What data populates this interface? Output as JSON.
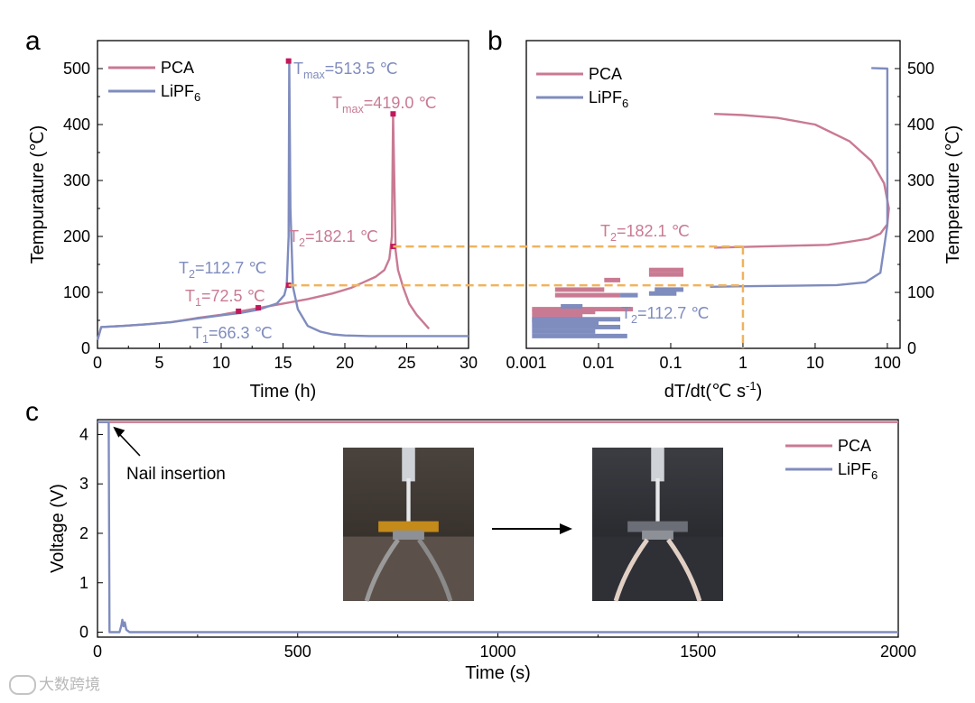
{
  "watermark": {
    "text": "大数跨境"
  },
  "colors": {
    "pca": "#c97a93",
    "lipf6": "#7f8cbe",
    "dashed": "#f0b35e",
    "pca_text": "#c97a93",
    "lipf6_text": "#7f8cbe",
    "marker": "#c2185b"
  },
  "chart_data": [
    {
      "id": "a",
      "type": "line",
      "panel_letter": "a",
      "xlabel": "Time (h)",
      "ylabel": "Tempurature (℃)",
      "xlim": [
        0,
        30
      ],
      "ylim": [
        0,
        550
      ],
      "xticks": [
        "0",
        "5",
        "10",
        "15",
        "20",
        "25",
        "30"
      ],
      "yticks": [
        "0",
        "100",
        "200",
        "300",
        "400",
        "500"
      ],
      "legend": [
        {
          "label": "PCA",
          "sub": ""
        },
        {
          "label": "LiPF",
          "sub": "6"
        }
      ],
      "series": [
        {
          "name": "PCA",
          "x": [
            0,
            0.3,
            2,
            4,
            6,
            8,
            10,
            11.5,
            13,
            15,
            17,
            19,
            20.5,
            21.5,
            22.5,
            23.2,
            23.6,
            23.8,
            23.9,
            24.0,
            24.1,
            24.3,
            24.7,
            25.2,
            25.8,
            26.4,
            26.8
          ],
          "y": [
            15,
            38,
            40,
            43,
            47,
            54,
            60,
            66,
            72,
            80,
            88,
            98,
            108,
            118,
            128,
            140,
            160,
            200,
            419,
            300,
            175,
            140,
            110,
            80,
            60,
            45,
            35
          ]
        },
        {
          "name": "LiPF6",
          "x": [
            0,
            0.3,
            2,
            4,
            6,
            8,
            10,
            11.5,
            13,
            14.5,
            15.1,
            15.3,
            15.45,
            15.5,
            15.6,
            15.8,
            16.2,
            17,
            18,
            19,
            20,
            22,
            25,
            30
          ],
          "y": [
            15,
            38,
            40,
            43,
            47,
            53,
            59,
            63,
            69,
            80,
            95,
            112,
            200,
            513,
            250,
            110,
            70,
            40,
            30,
            25,
            23,
            22,
            22,
            22
          ]
        }
      ],
      "markers": [
        {
          "x": 15.45,
          "y": 513.5,
          "series": "LiPF6"
        },
        {
          "x": 23.9,
          "y": 419,
          "series": "PCA"
        },
        {
          "x": 23.9,
          "y": 182.1,
          "series": "PCA"
        },
        {
          "x": 15.45,
          "y": 112.7,
          "series": "LiPF6"
        },
        {
          "x": 13,
          "y": 72.5,
          "series": "PCA"
        },
        {
          "x": 11.4,
          "y": 66.3,
          "series": "LiPF6"
        }
      ],
      "annotations": [
        {
          "base": "T",
          "sub": "max",
          "rest": "=513.5 ℃",
          "series": "LiPF6"
        },
        {
          "base": "T",
          "sub": "max",
          "rest": "=419.0 ℃",
          "series": "PCA"
        },
        {
          "base": "T",
          "sub": "2",
          "rest": "=182.1 ℃",
          "series": "PCA"
        },
        {
          "base": "T",
          "sub": "2",
          "rest": "=112.7 ℃",
          "series": "LiPF6"
        },
        {
          "base": "T",
          "sub": "1",
          "rest": "=72.5 ℃",
          "series": "PCA"
        },
        {
          "base": "T",
          "sub": "1",
          "rest": "=66.3 ℃",
          "series": "LiPF6"
        }
      ]
    },
    {
      "id": "b",
      "type": "line",
      "panel_letter": "b",
      "xlabel": "dT/dt(℃ s",
      "xlabel_sup": "-1",
      "xlabel_end": ")",
      "ylabel": "Temperature (℃)",
      "xscale": "log",
      "xlim": [
        0.001,
        150
      ],
      "ylim": [
        0,
        550
      ],
      "xticks": [
        "0.001",
        "0.01",
        "0.1",
        "1",
        "10",
        "100"
      ],
      "xtick_values": [
        0.001,
        0.01,
        0.1,
        1,
        10,
        100
      ],
      "yticks": [
        "0",
        "100",
        "200",
        "300",
        "400",
        "500"
      ],
      "legend": [
        {
          "label": "PCA",
          "sub": ""
        },
        {
          "label": "LiPF",
          "sub": "6"
        }
      ],
      "series": [
        {
          "name": "PCA",
          "x": [
            0.4,
            1,
            3,
            10,
            30,
            60,
            90,
            105,
            100,
            80,
            55,
            35,
            22,
            15,
            0.4
          ],
          "y": [
            419,
            417,
            412,
            400,
            370,
            335,
            295,
            250,
            222,
            205,
            196,
            192,
            188,
            185,
            180
          ]
        },
        {
          "name": "LiPF6",
          "x": [
            0.35,
            1,
            5,
            20,
            50,
            80,
            100,
            100,
            100,
            60
          ],
          "y": [
            110,
            111,
            112,
            113,
            118,
            135,
            220,
            350,
            500,
            501
          ]
        }
      ],
      "step_segments_pca": [
        {
          "x0": 0.0012,
          "x1": 0.009,
          "y": 65
        },
        {
          "x0": 0.0012,
          "x1": 0.006,
          "y": 58
        },
        {
          "x0": 0.0012,
          "x1": 0.0045,
          "y": 50
        },
        {
          "x0": 0.0025,
          "x1": 0.012,
          "y": 105
        },
        {
          "x0": 0.0025,
          "x1": 0.02,
          "y": 95
        },
        {
          "x0": 0.012,
          "x1": 0.02,
          "y": 122
        },
        {
          "x0": 0.05,
          "x1": 0.15,
          "y": 140
        },
        {
          "x0": 0.05,
          "x1": 0.15,
          "y": 132
        },
        {
          "x0": 0.0012,
          "x1": 0.03,
          "y": 70
        }
      ],
      "step_segments_lipf6": [
        {
          "x0": 0.0012,
          "x1": 0.01,
          "y": 45
        },
        {
          "x0": 0.0012,
          "x1": 0.02,
          "y": 38
        },
        {
          "x0": 0.0012,
          "x1": 0.009,
          "y": 30
        },
        {
          "x0": 0.0012,
          "x1": 0.025,
          "y": 22
        },
        {
          "x0": 0.003,
          "x1": 0.006,
          "y": 75
        },
        {
          "x0": 0.02,
          "x1": 0.035,
          "y": 95
        },
        {
          "x0": 0.06,
          "x1": 0.15,
          "y": 105
        },
        {
          "x0": 0.05,
          "x1": 0.12,
          "y": 98
        },
        {
          "x0": 0.0012,
          "x1": 0.02,
          "y": 52
        }
      ],
      "annotations": [
        {
          "base": "T",
          "sub": "2",
          "rest": "=182.1 ℃",
          "series": "PCA"
        },
        {
          "base": "T",
          "sub": "2",
          "rest": "=112.7 ℃",
          "series": "LiPF6"
        }
      ]
    },
    {
      "id": "c",
      "type": "line",
      "panel_letter": "c",
      "xlabel": "Time (s)",
      "ylabel": "Voltage (V)",
      "xlim": [
        0,
        2000
      ],
      "ylim": [
        -0.1,
        4.3
      ],
      "xticks": [
        "0",
        "500",
        "1000",
        "1500",
        "2000"
      ],
      "yticks": [
        "0",
        "1",
        "2",
        "3",
        "4"
      ],
      "legend": [
        {
          "label": "PCA",
          "sub": ""
        },
        {
          "label": "LiPF",
          "sub": "6"
        }
      ],
      "series": [
        {
          "name": "PCA",
          "x": [
            0,
            2000
          ],
          "y": [
            4.25,
            4.25
          ]
        },
        {
          "name": "LiPF6",
          "x": [
            0,
            28,
            30,
            35,
            55,
            60,
            62,
            65,
            68,
            72,
            80,
            2000
          ],
          "y": [
            4.25,
            4.25,
            0.0,
            0.0,
            0.0,
            0.15,
            0.25,
            0.12,
            0.2,
            0.05,
            0.0,
            0.0
          ]
        }
      ],
      "annotations": [
        {
          "text": "Nail insertion"
        }
      ]
    }
  ]
}
